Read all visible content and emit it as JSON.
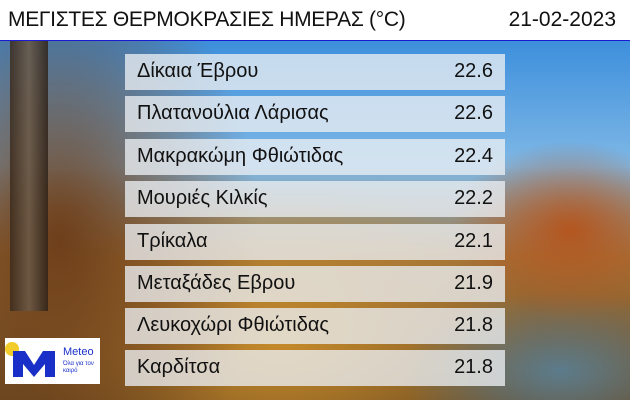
{
  "header": {
    "title": "ΜΕΓΙΣΤΕΣ ΘΕΡΜΟΚΡΑΣΙΕΣ ΗΜΕΡΑΣ (°C)",
    "date": "21-02-2023"
  },
  "rows": [
    {
      "name": "Δίκαια Έβρου",
      "value": "22.6"
    },
    {
      "name": "Πλατανούλια Λάρισας",
      "value": "22.6"
    },
    {
      "name": "Μακρακώμη Φθιώτιδας",
      "value": "22.4"
    },
    {
      "name": "Μουριές Κιλκίς",
      "value": "22.2"
    },
    {
      "name": "Τρίκαλα",
      "value": "22.1"
    },
    {
      "name": "Μεταξάδες Εβρου",
      "value": "21.9"
    },
    {
      "name": "Λευκοχώρι Φθιώτιδας",
      "value": "21.8"
    },
    {
      "name": "Καρδίτσα",
      "value": "21.8"
    }
  ],
  "logo": {
    "brand": "Meteo",
    "tagline": "Όλα για τον καιρό"
  },
  "colors": {
    "accent": "#1a2fc8",
    "sun": "#f2cc2a"
  }
}
